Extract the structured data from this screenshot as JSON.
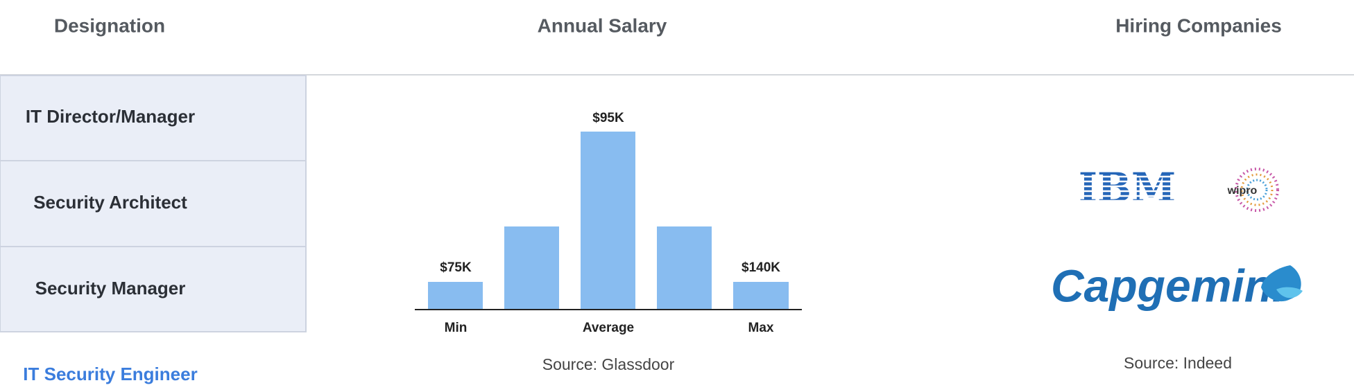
{
  "header": {
    "designation": "Designation",
    "salary": "Annual Salary",
    "companies": "Hiring Companies"
  },
  "designations": [
    "IT Director/Manager",
    "Security Architect",
    "Security Manager",
    "IT Security Engineer"
  ],
  "salary": {
    "labels": [
      "$75K",
      "$95K",
      "$140K"
    ],
    "categories": [
      "Min",
      "Average",
      "Max"
    ],
    "source": "Source: Glassdoor"
  },
  "companies": {
    "logos": [
      "IBM",
      "wipro",
      "Capgemini"
    ],
    "source": "Source: Indeed"
  }
}
